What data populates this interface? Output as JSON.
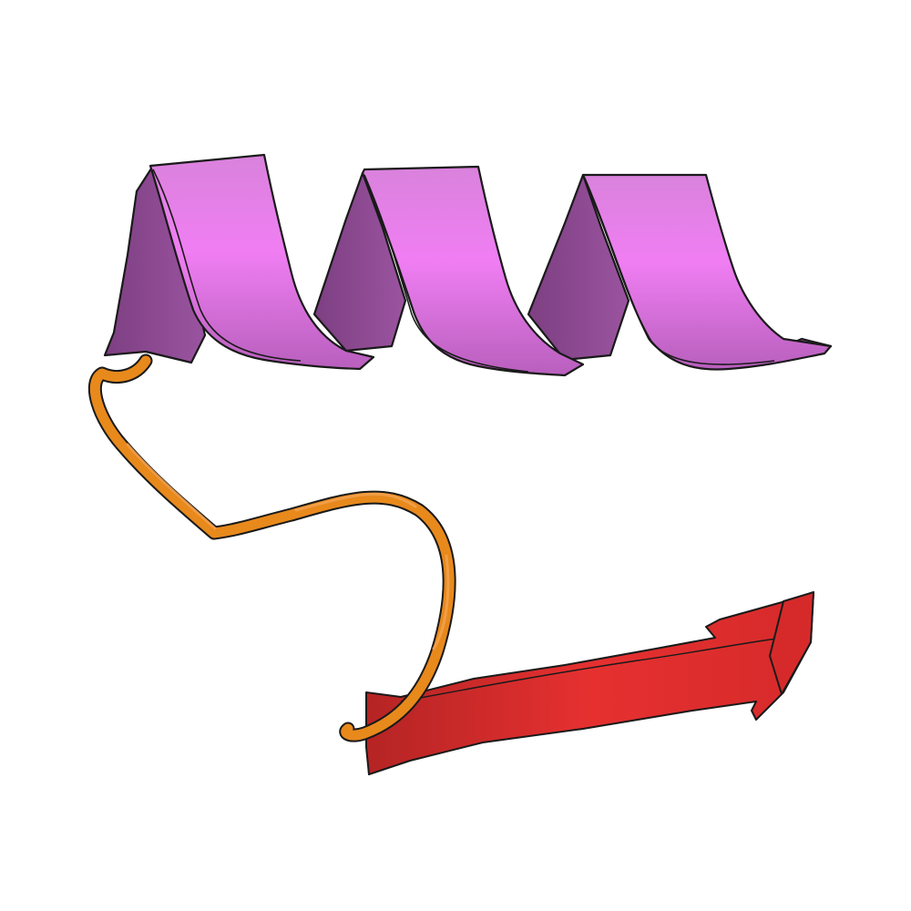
{
  "structure": {
    "representation": "cartoon",
    "elements": [
      {
        "kind": "alpha-helix",
        "turns": 3,
        "color": "#d070d8"
      },
      {
        "kind": "coil-loop",
        "color": "#e8891c"
      },
      {
        "kind": "beta-strand",
        "color": "#e83232"
      }
    ]
  },
  "colors": {
    "background": "#ffffff",
    "helix_light": "#f080f4",
    "helix_mid": "#cc66cf",
    "helix_dark": "#8d4a92",
    "coil": "#e8891c",
    "coil_shadow": "#b86312",
    "strand": "#e83232",
    "strand_dark": "#a81f1f",
    "outline": "#1a1a1a"
  }
}
